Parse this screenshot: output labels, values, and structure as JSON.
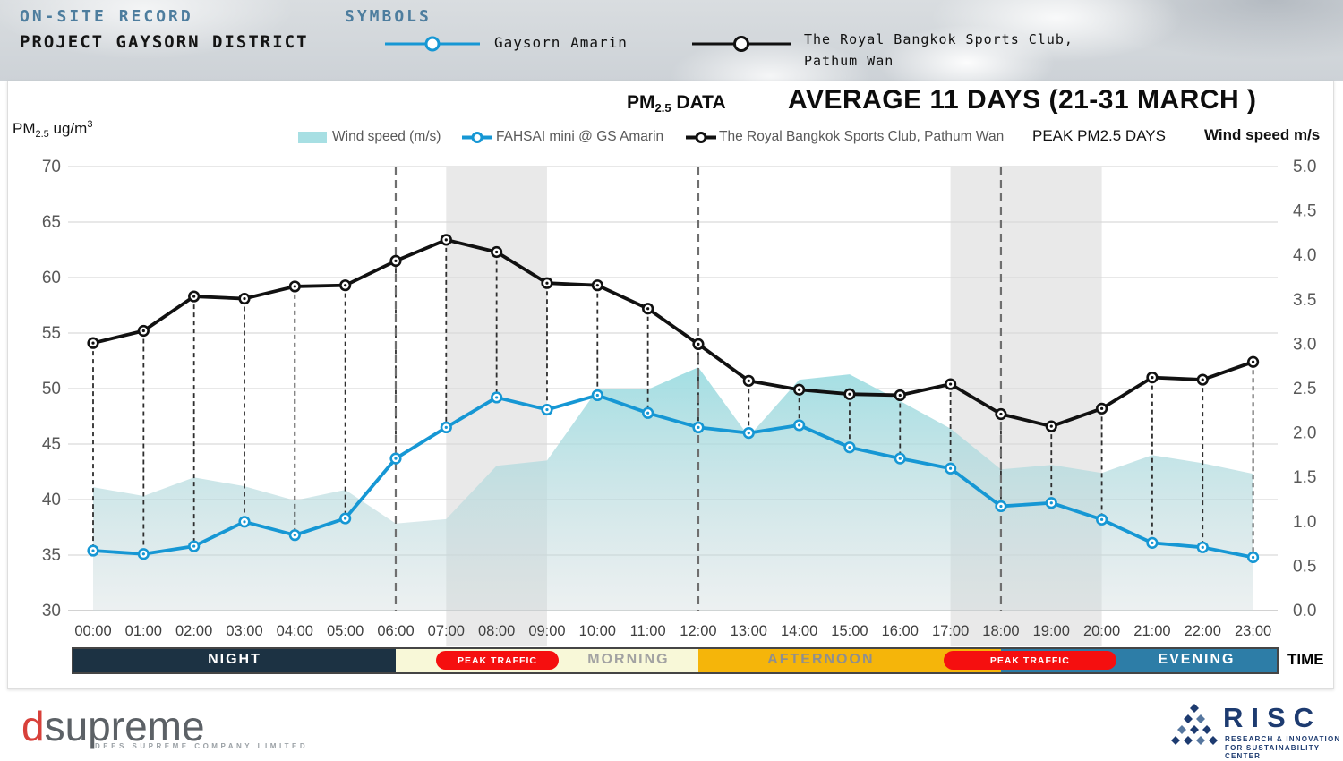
{
  "header": {
    "onsite_record": "ON-SITE RECORD",
    "project": "PROJECT GAYSORN DISTRICT",
    "symbols_label": "SYMBOLS",
    "symbol1": "Gaysorn Amarin",
    "symbol2_line1": "The Royal Bangkok Sports Club,",
    "symbol2_line2": "Pathum Wan"
  },
  "chart_header": {
    "pm_prefix": "PM",
    "pm_sub": "2.5",
    "pm_suffix": " DATA",
    "title": "AVERAGE 11 DAYS (21-31 MARCH )",
    "unit_pm": "PM",
    "unit_sub": "2.5",
    "unit_rest": " ug/m",
    "unit_sup": "3",
    "peak_days_label": "PEAK PM2.5 DAYS",
    "wind_axis_label": "Wind speed m/s"
  },
  "legend": {
    "items": [
      {
        "label": "Wind speed (m/s)"
      },
      {
        "label": "FAHSAI mini @ GS Amarin"
      },
      {
        "label": "The Royal Bangkok Sports Club, Pathum Wan"
      }
    ]
  },
  "colors": {
    "accent_blue": "#1697d4",
    "black_series": "#111111",
    "wind_fill": "#a7dfe3",
    "header_blue": "#4d7d9e",
    "peak_red": "#f50f0f",
    "night": "#1c3243",
    "morning": "#f8f8d8",
    "afternoon": "#f5b50a",
    "evening": "#2d7da7"
  },
  "chart_data": {
    "type": "line",
    "title": "AVERAGE 11 DAYS (21-31 MARCH )",
    "x": [
      "00:00",
      "01:00",
      "02:00",
      "03:00",
      "04:00",
      "05:00",
      "06:00",
      "07:00",
      "08:00",
      "09:00",
      "10:00",
      "11:00",
      "12:00",
      "13:00",
      "14:00",
      "15:00",
      "16:00",
      "17:00",
      "18:00",
      "19:00",
      "20:00",
      "21:00",
      "22:00",
      "23:00"
    ],
    "left_axis": {
      "label": "PM2.5 ug/m3",
      "min": 30,
      "max": 70,
      "step": 5
    },
    "right_axis": {
      "label": "Wind speed m/s",
      "min": 0.0,
      "max": 5.0,
      "step": 0.5
    },
    "series": [
      {
        "name": "Wind speed (m/s)",
        "type": "area",
        "axis": "right",
        "color": "#a7dfe3",
        "values": [
          1.39,
          1.29,
          1.5,
          1.4,
          1.24,
          1.36,
          0.98,
          1.03,
          1.63,
          1.69,
          2.49,
          2.49,
          2.74,
          1.96,
          2.6,
          2.66,
          2.36,
          2.05,
          1.59,
          1.64,
          1.55,
          1.75,
          1.66,
          1.54
        ]
      },
      {
        "name": "FAHSAI mini @ GS Amarin",
        "type": "line",
        "axis": "left",
        "color": "#1697d4",
        "values": [
          35.4,
          35.1,
          35.8,
          38.0,
          36.8,
          38.3,
          43.7,
          46.5,
          49.2,
          48.1,
          49.4,
          47.8,
          46.5,
          46.0,
          46.7,
          44.7,
          43.7,
          42.8,
          39.4,
          39.7,
          38.2,
          36.1,
          35.7,
          34.8
        ]
      },
      {
        "name": "The Royal Bangkok Sports Club, Pathum Wan",
        "type": "line",
        "axis": "left",
        "color": "#111111",
        "values": [
          54.1,
          55.2,
          58.3,
          58.1,
          59.2,
          59.3,
          61.5,
          63.4,
          62.3,
          59.5,
          59.3,
          57.2,
          54.0,
          50.7,
          49.9,
          49.5,
          49.4,
          50.4,
          47.7,
          46.6,
          48.2,
          51.0,
          50.8,
          52.4
        ]
      }
    ],
    "shaded_peak_hours": [
      [
        7,
        9
      ],
      [
        17,
        20
      ]
    ],
    "boundary_hours": [
      6,
      12,
      18
    ],
    "grid": true,
    "legend_position": "top"
  },
  "timeband": {
    "time_label": "TIME",
    "segments": [
      {
        "label": "NIGHT",
        "bg": "#1c3243",
        "color": "#ffffff",
        "from": null,
        "to": 6
      },
      {
        "label": "MORNING",
        "bg": "#f8f8d8",
        "color": "#a2a2a2",
        "from": 6,
        "to": 12
      },
      {
        "label": "AFTERNOON",
        "bg": "#f5b50a",
        "color": "#8f8f8f",
        "from": 12,
        "to": 18
      },
      {
        "label": "EVENING",
        "bg": "#2d7da7",
        "color": "#ffffff",
        "from": 18,
        "to": null
      }
    ],
    "peak_pills": [
      {
        "label": "PEAK TRAFFIC",
        "from": 6.8,
        "to": 9.23
      },
      {
        "label": "PEAK TRAFFIC",
        "from": 16.86,
        "to": 20.29
      }
    ]
  },
  "footer": {
    "dsupreme_d": "d",
    "dsupreme_rest": "supreme",
    "dsupreme_tagline": "DEES SUPREME COMPANY LIMITED",
    "risc_name": "RISC",
    "risc_tagline1": "RESEARCH & INNOVATION",
    "risc_tagline2": "FOR SUSTAINABILITY CENTER"
  }
}
